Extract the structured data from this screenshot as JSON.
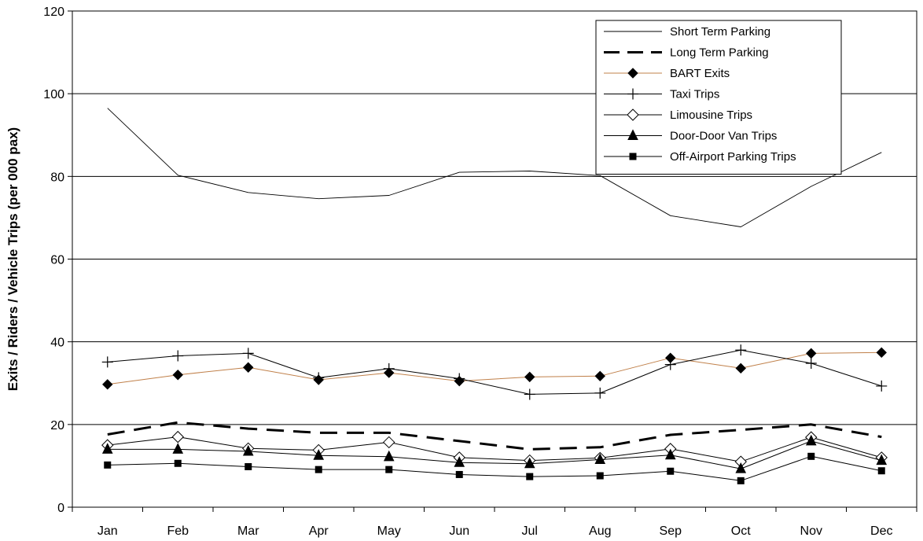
{
  "chart_data": {
    "type": "line",
    "title": "",
    "xlabel": "",
    "ylabel": "Exits / Riders / Vehicle Trips (per 000 pax)",
    "ylim": [
      0,
      120
    ],
    "yticks": [
      0,
      20,
      40,
      60,
      80,
      100,
      120
    ],
    "grid": true,
    "legend_position": "top-right",
    "categories": [
      "Jan",
      "Feb",
      "Mar",
      "Apr",
      "May",
      "Jun",
      "Jul",
      "Aug",
      "Sep",
      "Oct",
      "Nov",
      "Dec"
    ],
    "series": [
      {
        "name": "Short Term Parking",
        "color": "#000000",
        "style": "solid-thin",
        "marker": "none",
        "values": [
          96.5,
          80.3,
          76.1,
          74.6,
          75.4,
          81.0,
          81.3,
          80.2,
          70.5,
          67.8,
          77.6,
          85.8
        ]
      },
      {
        "name": "Long Term Parking",
        "color": "#000000",
        "style": "dashed-thick",
        "marker": "none",
        "values": [
          17.6,
          20.5,
          19.0,
          18.0,
          18.0,
          16.0,
          14.0,
          14.5,
          17.5,
          18.7,
          20.0,
          17.0
        ]
      },
      {
        "name": "BART Exits",
        "color": "#c0804a",
        "style": "solid",
        "marker": "diamond",
        "values": [
          29.7,
          32.0,
          33.8,
          30.8,
          32.5,
          30.5,
          31.5,
          31.7,
          36.1,
          33.6,
          37.2,
          37.4
        ]
      },
      {
        "name": "Taxi Trips",
        "color": "#000000",
        "style": "solid",
        "marker": "plus",
        "values": [
          35.1,
          36.6,
          37.2,
          31.3,
          33.5,
          31.1,
          27.3,
          27.6,
          34.5,
          38.0,
          34.8,
          29.3
        ]
      },
      {
        "name": "Limousine Trips",
        "color": "#000000",
        "style": "solid",
        "marker": "open-diamond",
        "values": [
          15.0,
          17.0,
          14.2,
          13.8,
          15.7,
          12.0,
          11.3,
          11.9,
          14.1,
          11.0,
          16.9,
          12.0
        ]
      },
      {
        "name": "Door-Door Van Trips",
        "color": "#000000",
        "style": "solid",
        "marker": "triangle",
        "values": [
          14.0,
          14.0,
          13.5,
          12.5,
          12.2,
          10.8,
          10.5,
          11.5,
          12.6,
          9.3,
          16.0,
          11.3
        ]
      },
      {
        "name": "Off-Airport Parking Trips",
        "color": "#000000",
        "style": "solid",
        "marker": "square",
        "values": [
          10.2,
          10.6,
          9.8,
          9.1,
          9.1,
          7.9,
          7.4,
          7.6,
          8.7,
          6.4,
          12.3,
          8.8
        ]
      }
    ]
  }
}
